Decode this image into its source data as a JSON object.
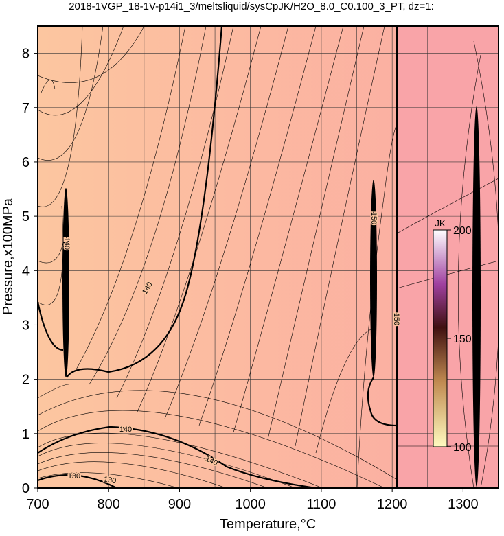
{
  "chart_data": {
    "type": "contour",
    "title": "2018-1VGP_18-1V-p14i1_3/meltsliquid/sysCpJK/H2O_8.0_C0.100_3_PT, dz=1:",
    "xlabel": "Temperature,°C",
    "ylabel": "Pressure,x100MPa",
    "xlim": [
      700,
      1350
    ],
    "xticks": [
      700,
      800,
      900,
      1000,
      1100,
      1200,
      1300
    ],
    "xminor_ticks": [
      750,
      850,
      950,
      1050,
      1150,
      1250,
      1350
    ],
    "ylim": [
      0,
      8.5
    ],
    "yticks": [
      0,
      1,
      2,
      3,
      4,
      5,
      6,
      7,
      8
    ],
    "grid": true,
    "contour_labels": [
      140,
      140,
      140,
      130,
      130,
      150,
      150,
      140
    ],
    "colorbar": {
      "label": "JK",
      "lim": [
        100,
        200
      ],
      "ticks": [
        100,
        150,
        200
      ]
    }
  }
}
